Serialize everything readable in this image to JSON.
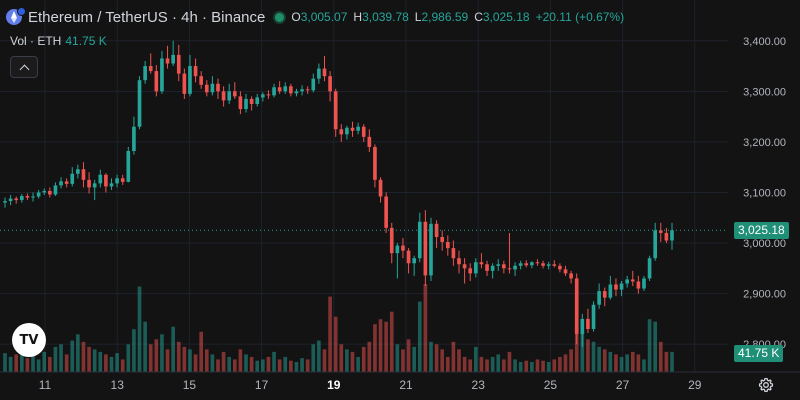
{
  "header": {
    "title": "Ethereum / TetherUS · 4h · Binance",
    "open_label": "O",
    "open": "3,005.07",
    "high_label": "H",
    "high": "3,039.78",
    "low_label": "L",
    "low": "2,986.59",
    "close_label": "C",
    "close": "3,025.18",
    "change": "+20.11 (+0.67%)"
  },
  "volume_legend": {
    "label": "Vol · ETH",
    "value": "41.75 K"
  },
  "logo_text": "TV",
  "price_tag": "3,025.18",
  "volume_tag": "41.75 K",
  "colors": {
    "up": "#26a69a",
    "down": "#ef5350",
    "background": "#131313"
  },
  "icons": {
    "collapse": "chevron-up-icon",
    "settings": "gear-icon",
    "symbol": "ethereum-icon"
  },
  "chart_data": {
    "type": "candlestick",
    "interval": "4h",
    "y_axis": {
      "ticks": [
        "3,400.00",
        "3,300.00",
        "3,200.00",
        "3,100.00",
        "3,000.00",
        "2,900.00",
        "2,800.00"
      ],
      "tick_values": [
        3400,
        3300,
        3200,
        3100,
        3000,
        2900,
        2800
      ],
      "range": [
        2745,
        3445
      ]
    },
    "x_axis": {
      "ticks": [
        "11",
        "13",
        "15",
        "17",
        "19",
        "21",
        "23",
        "25",
        "27",
        "29"
      ],
      "bold_tick": "19"
    },
    "last_price": 3025.18,
    "candles": [
      [
        3080,
        3090,
        3070,
        3083,
        15
      ],
      [
        3083,
        3095,
        3075,
        3088,
        12
      ],
      [
        3088,
        3092,
        3078,
        3085,
        14
      ],
      [
        3085,
        3097,
        3080,
        3093,
        18
      ],
      [
        3093,
        3098,
        3085,
        3090,
        11
      ],
      [
        3090,
        3100,
        3082,
        3092,
        13
      ],
      [
        3092,
        3105,
        3088,
        3100,
        10
      ],
      [
        3100,
        3108,
        3095,
        3103,
        16
      ],
      [
        3103,
        3110,
        3090,
        3096,
        12
      ],
      [
        3096,
        3120,
        3093,
        3114,
        20
      ],
      [
        3114,
        3130,
        3108,
        3122,
        22
      ],
      [
        3122,
        3128,
        3110,
        3117,
        14
      ],
      [
        3117,
        3150,
        3112,
        3137,
        25
      ],
      [
        3137,
        3155,
        3128,
        3146,
        30
      ],
      [
        3146,
        3160,
        3110,
        3125,
        24
      ],
      [
        3125,
        3140,
        3098,
        3110,
        20
      ],
      [
        3110,
        3125,
        3085,
        3118,
        18
      ],
      [
        3118,
        3145,
        3110,
        3135,
        16
      ],
      [
        3135,
        3138,
        3100,
        3112,
        14
      ],
      [
        3112,
        3128,
        3105,
        3118,
        12
      ],
      [
        3118,
        3135,
        3110,
        3128,
        15
      ],
      [
        3128,
        3135,
        3115,
        3121,
        10
      ],
      [
        3121,
        3190,
        3120,
        3182,
        22
      ],
      [
        3182,
        3250,
        3175,
        3230,
        34
      ],
      [
        3230,
        3330,
        3225,
        3322,
        68
      ],
      [
        3322,
        3360,
        3315,
        3350,
        40
      ],
      [
        3350,
        3375,
        3335,
        3340,
        22
      ],
      [
        3340,
        3352,
        3290,
        3300,
        26
      ],
      [
        3300,
        3380,
        3295,
        3365,
        30
      ],
      [
        3365,
        3390,
        3345,
        3355,
        18
      ],
      [
        3355,
        3400,
        3350,
        3372,
        36
      ],
      [
        3372,
        3392,
        3320,
        3335,
        24
      ],
      [
        3335,
        3345,
        3285,
        3295,
        20
      ],
      [
        3295,
        3372,
        3290,
        3350,
        18
      ],
      [
        3350,
        3365,
        3318,
        3330,
        14
      ],
      [
        3330,
        3340,
        3305,
        3313,
        32
      ],
      [
        3313,
        3322,
        3290,
        3298,
        18
      ],
      [
        3298,
        3330,
        3292,
        3315,
        14
      ],
      [
        3315,
        3325,
        3285,
        3300,
        10
      ],
      [
        3300,
        3310,
        3270,
        3282,
        16
      ],
      [
        3282,
        3315,
        3275,
        3300,
        12
      ],
      [
        3300,
        3318,
        3285,
        3290,
        10
      ],
      [
        3290,
        3300,
        3255,
        3265,
        18
      ],
      [
        3265,
        3295,
        3258,
        3285,
        14
      ],
      [
        3285,
        3290,
        3262,
        3275,
        12
      ],
      [
        3275,
        3295,
        3270,
        3288,
        9
      ],
      [
        3288,
        3298,
        3280,
        3294,
        10
      ],
      [
        3294,
        3302,
        3285,
        3292,
        12
      ],
      [
        3292,
        3315,
        3288,
        3308,
        16
      ],
      [
        3308,
        3320,
        3295,
        3300,
        10
      ],
      [
        3300,
        3318,
        3295,
        3310,
        12
      ],
      [
        3310,
        3315,
        3290,
        3296,
        9
      ],
      [
        3296,
        3305,
        3290,
        3300,
        8
      ],
      [
        3300,
        3312,
        3292,
        3304,
        11
      ],
      [
        3304,
        3310,
        3295,
        3302,
        10
      ],
      [
        3302,
        3335,
        3298,
        3325,
        22
      ],
      [
        3325,
        3355,
        3315,
        3345,
        25
      ],
      [
        3345,
        3370,
        3320,
        3330,
        18
      ],
      [
        3330,
        3340,
        3280,
        3300,
        60
      ],
      [
        3300,
        3305,
        3210,
        3225,
        44
      ],
      [
        3225,
        3235,
        3200,
        3215,
        22
      ],
      [
        3215,
        3232,
        3205,
        3228,
        18
      ],
      [
        3228,
        3240,
        3210,
        3222,
        16
      ],
      [
        3222,
        3238,
        3215,
        3230,
        12
      ],
      [
        3230,
        3235,
        3200,
        3210,
        20
      ],
      [
        3210,
        3225,
        3180,
        3190,
        24
      ],
      [
        3190,
        3195,
        3110,
        3125,
        38
      ],
      [
        3125,
        3130,
        3080,
        3092,
        42
      ],
      [
        3092,
        3100,
        3020,
        3030,
        40
      ],
      [
        3030,
        3040,
        2960,
        2980,
        48
      ],
      [
        2980,
        3000,
        2930,
        2995,
        22
      ],
      [
        2995,
        3010,
        2970,
        2985,
        18
      ],
      [
        2985,
        2990,
        2940,
        2960,
        26
      ],
      [
        2960,
        2975,
        2935,
        2970,
        20
      ],
      [
        2970,
        3060,
        2962,
        3042,
        56
      ],
      [
        3042,
        3065,
        2915,
        2936,
        70
      ],
      [
        2936,
        3050,
        2925,
        3038,
        24
      ],
      [
        3038,
        3045,
        2990,
        3012,
        22
      ],
      [
        3012,
        3025,
        2985,
        3002,
        18
      ],
      [
        3002,
        3015,
        2975,
        2990,
        12
      ],
      [
        2990,
        3005,
        2955,
        2970,
        24
      ],
      [
        2970,
        2985,
        2940,
        2958,
        18
      ],
      [
        2958,
        2970,
        2920,
        2950,
        12
      ],
      [
        2950,
        2960,
        2925,
        2940,
        10
      ],
      [
        2940,
        2970,
        2932,
        2962,
        20
      ],
      [
        2962,
        2980,
        2950,
        2958,
        12
      ],
      [
        2958,
        2965,
        2935,
        2945,
        10
      ],
      [
        2945,
        2960,
        2930,
        2955,
        12
      ],
      [
        2955,
        2968,
        2945,
        2958,
        14
      ],
      [
        2958,
        2965,
        2940,
        2950,
        10
      ],
      [
        2950,
        3020,
        2940,
        2948,
        16
      ],
      [
        2948,
        2962,
        2935,
        2955,
        10
      ],
      [
        2955,
        2965,
        2948,
        2960,
        8
      ],
      [
        2960,
        2966,
        2952,
        2956,
        9
      ],
      [
        2956,
        2964,
        2950,
        2962,
        8
      ],
      [
        2962,
        2968,
        2955,
        2960,
        10
      ],
      [
        2960,
        2965,
        2950,
        2955,
        9
      ],
      [
        2955,
        2963,
        2948,
        2958,
        8
      ],
      [
        2958,
        2966,
        2952,
        2955,
        10
      ],
      [
        2955,
        2960,
        2942,
        2948,
        12
      ],
      [
        2948,
        2955,
        2935,
        2940,
        14
      ],
      [
        2940,
        2945,
        2920,
        2930,
        18
      ],
      [
        2930,
        2940,
        2800,
        2820,
        60
      ],
      [
        2820,
        2860,
        2795,
        2850,
        32
      ],
      [
        2850,
        2870,
        2822,
        2830,
        26
      ],
      [
        2830,
        2885,
        2825,
        2878,
        24
      ],
      [
        2878,
        2920,
        2870,
        2905,
        20
      ],
      [
        2905,
        2912,
        2875,
        2892,
        18
      ],
      [
        2892,
        2935,
        2888,
        2918,
        16
      ],
      [
        2918,
        2930,
        2895,
        2908,
        14
      ],
      [
        2908,
        2925,
        2895,
        2920,
        12
      ],
      [
        2920,
        2935,
        2912,
        2928,
        14
      ],
      [
        2928,
        2945,
        2915,
        2924,
        16
      ],
      [
        2924,
        2935,
        2900,
        2910,
        14
      ],
      [
        2910,
        2935,
        2905,
        2930,
        10
      ],
      [
        2930,
        2975,
        2925,
        2970,
        42
      ],
      [
        2970,
        3040,
        2965,
        3025,
        40
      ],
      [
        3025,
        3040,
        3002,
        3020,
        24
      ],
      [
        3020,
        3030,
        3000,
        3005,
        16
      ],
      [
        3005.07,
        3039.78,
        2986.59,
        3025.18,
        16
      ]
    ]
  }
}
